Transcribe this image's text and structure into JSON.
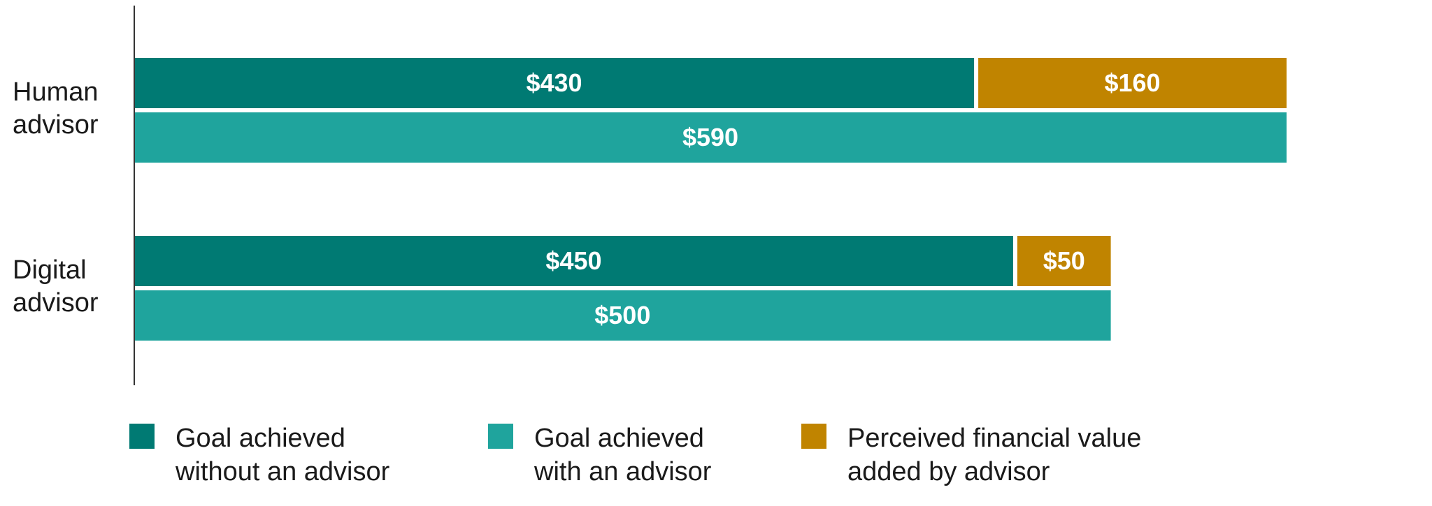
{
  "chart_data": {
    "type": "bar",
    "orientation": "horizontal",
    "categories": [
      {
        "lines": [
          "Human",
          "advisor"
        ]
      },
      {
        "lines": [
          "Digital",
          "advisor"
        ]
      }
    ],
    "groups": [
      {
        "category": "Human advisor",
        "rows": [
          {
            "segments": [
              {
                "series": "Goal achieved without an advisor",
                "value": 430,
                "label": "$430"
              },
              {
                "series": "Perceived financial value added by advisor",
                "value": 160,
                "label": "$160"
              }
            ]
          },
          {
            "segments": [
              {
                "series": "Goal achieved with an advisor",
                "value": 590,
                "label": "$590"
              }
            ]
          }
        ]
      },
      {
        "category": "Digital advisor",
        "rows": [
          {
            "segments": [
              {
                "series": "Goal achieved without an advisor",
                "value": 450,
                "label": "$450"
              },
              {
                "series": "Perceived financial value added by advisor",
                "value": 50,
                "label": "$50"
              }
            ]
          },
          {
            "segments": [
              {
                "series": "Goal achieved with an advisor",
                "value": 500,
                "label": "$500"
              }
            ]
          }
        ]
      }
    ],
    "series": [
      {
        "name": "Goal achieved without an advisor",
        "lines": [
          "Goal achieved",
          "without an advisor"
        ],
        "color": "#007A73"
      },
      {
        "name": "Goal achieved with an advisor",
        "lines": [
          "Goal achieved",
          "with an advisor"
        ],
        "color": "#1FA49D"
      },
      {
        "name": "Perceived financial value added by advisor",
        "lines": [
          "Perceived financial value",
          "added by advisor"
        ],
        "color": "#C08400"
      }
    ],
    "xlim": [
      0,
      590
    ],
    "grid": false,
    "legend_position": "bottom"
  }
}
